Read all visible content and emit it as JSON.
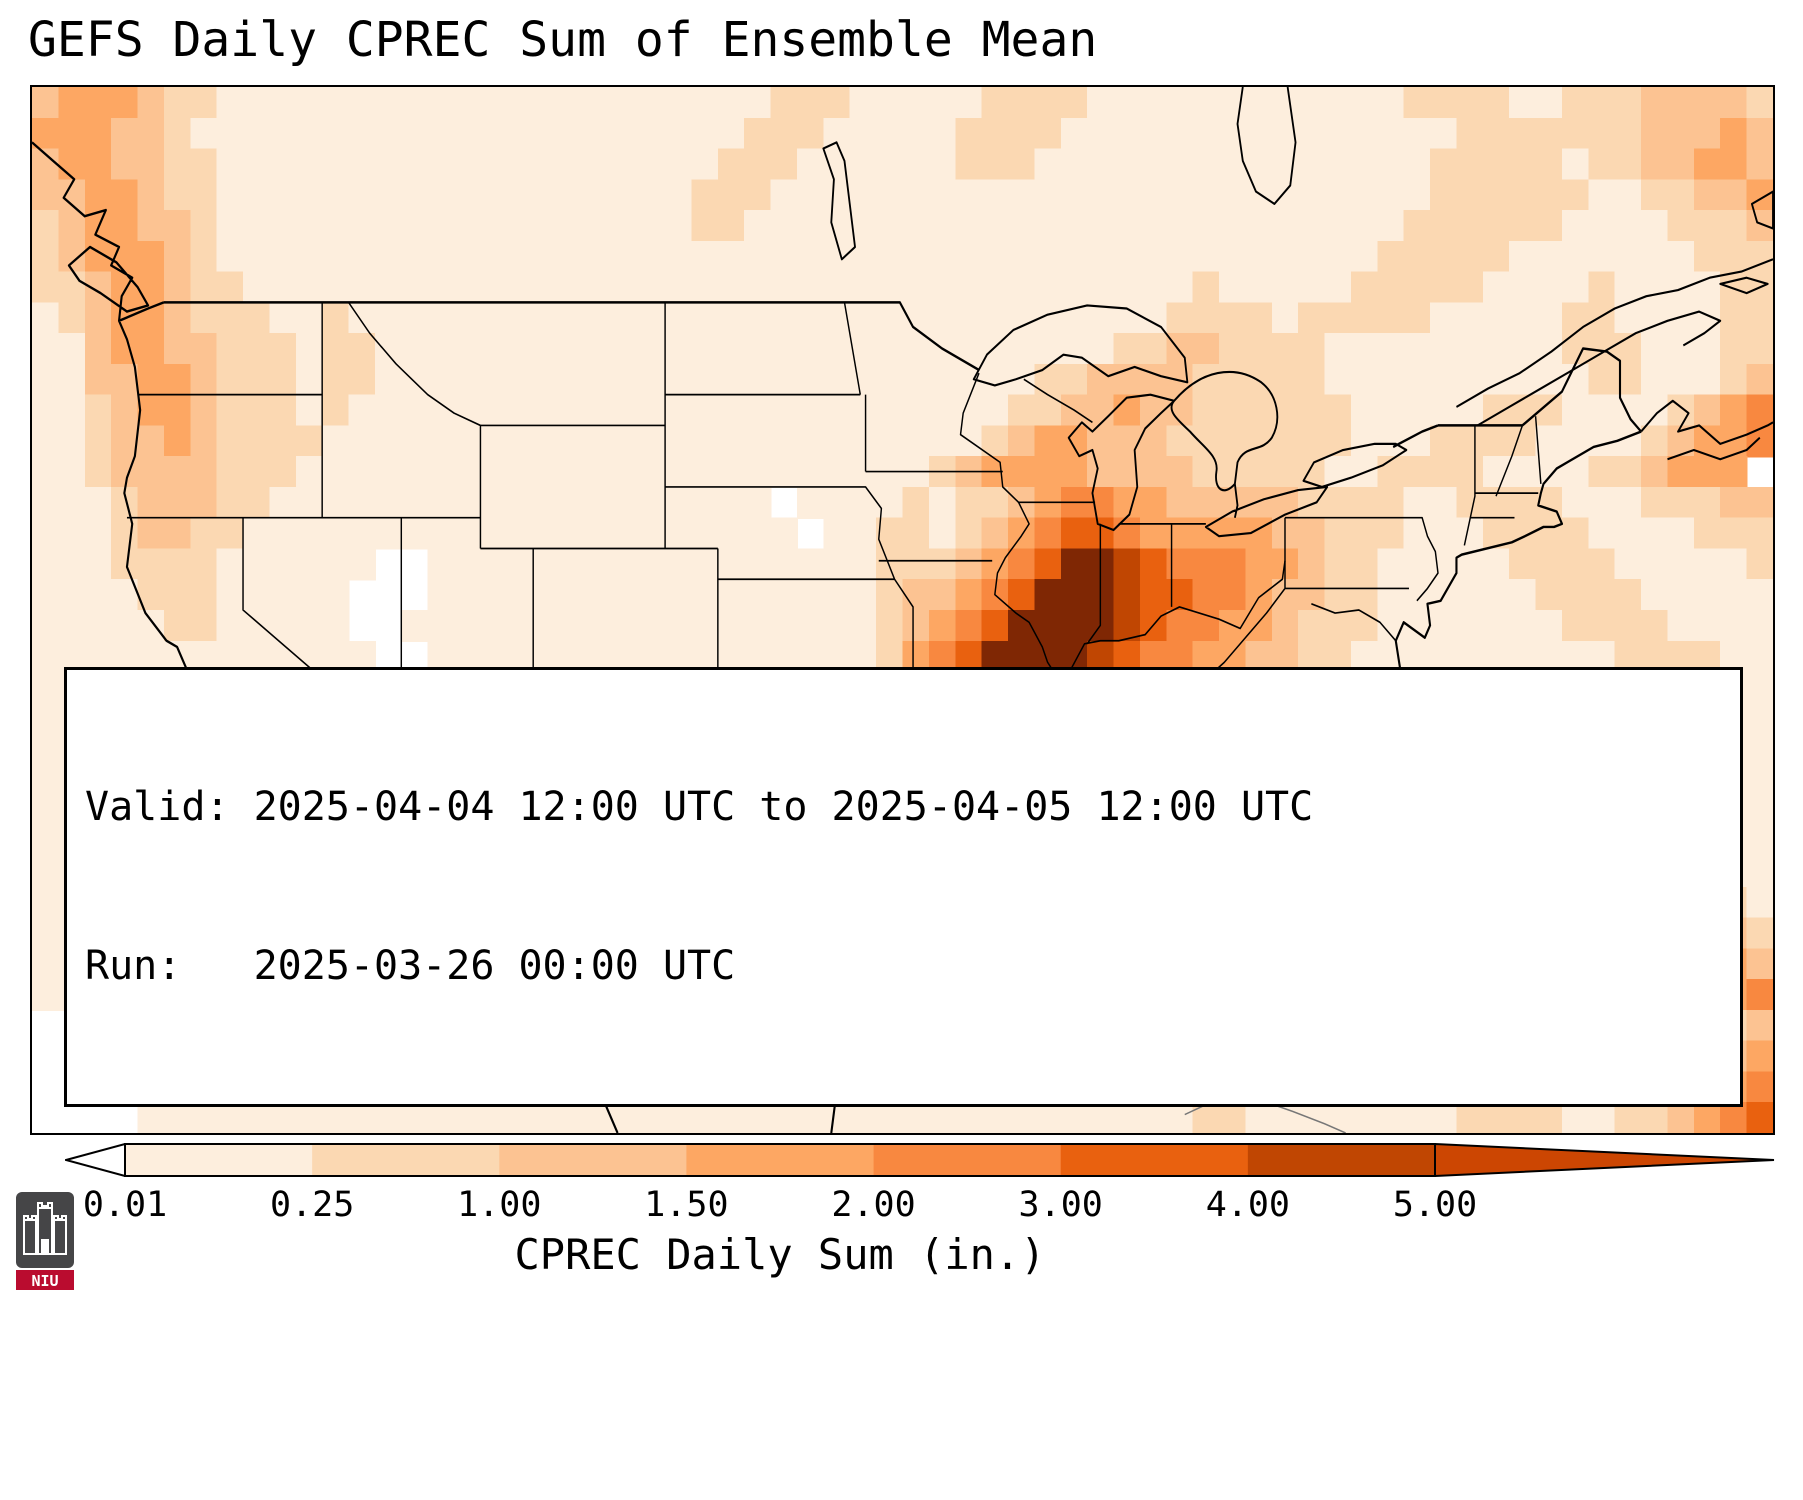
{
  "page": {
    "title": "GEFS Daily CPREC Sum of Ensemble Mean"
  },
  "info_box": {
    "valid_line": "Valid: 2025-04-04 12:00 UTC to 2025-04-05 12:00 UTC",
    "run_line": "Run:   2025-03-26 00:00 UTC"
  },
  "colorbar": {
    "label": "CPREC Daily Sum (in.)",
    "ticks": [
      "0.01",
      "0.25",
      "1.00",
      "1.50",
      "2.00",
      "3.00",
      "4.00",
      "5.00"
    ],
    "segment_colors": [
      "#fdeedd",
      "#fbd8b2",
      "#fcc392",
      "#fda763",
      "#f88840",
      "#e9610f",
      "#c04602"
    ],
    "under_color": "#ffffff",
    "over_color": "#cc4602",
    "outline_color": "#000000"
  },
  "logo": {
    "text": "NIU",
    "box_color": "#454547",
    "banner_color": "#ba0c2f"
  },
  "chart_data": {
    "type": "heatmap",
    "title": "GEFS Daily CPREC Sum of Ensemble Mean",
    "variable": "CPREC Daily Sum",
    "units": "in.",
    "valid_from": "2025-04-04 12:00 UTC",
    "valid_to": "2025-04-05 12:00 UTC",
    "run": "2025-03-26 00:00 UTC",
    "lon_range": [
      -128,
      -62
    ],
    "lat_range": [
      22,
      56
    ],
    "grid_cell_deg": 1,
    "levels_in": [
      0.01,
      0.25,
      1.0,
      1.5,
      2.0,
      3.0,
      4.0,
      5.0
    ],
    "level_colors": [
      "#ffffff",
      "#fdeedd",
      "#fbd8b2",
      "#fcc392",
      "#fda763",
      "#f88840",
      "#e9610f",
      "#c04602",
      "#7f2704"
    ],
    "legend_note": "each char in a grid row is a precipitation bin index 0-8; rows run north to south (56N to 22N), columns west to east (128W to 62W)",
    "max_region": "Arkansas / Missouri / Illinois / Indiana (> 5.00 in.)",
    "grid_rows_top_to_bottom": [
      "344432211111111111111111111122211111222211111111111122221122233 33222",
      "444332111111111111111111111222111112222111111111111111222222233343222",
      "344332211111111111111111112221111112221111111111111112222212233443322",
      "334432211111111111111111122211111111111111111111111112222221122334332",
      "234433211111111111111111122111111111111111111111111122222211112223433",
      "234443211111111111111111111111111111111111111111111222221111111222333",
      "223443221111111111111111111111111111111111112111112222211112111122233",
      "123443222112111111111111111111111111111111122221222221111122111122334",
      "113443322212211111111111111111111111111112233222211111111122211122344",
      "113344322212211111111111111111111111112233332222211111111112211123445",
      "112344322212111111111111111111111111122334332222221111122211112345540",
      "112334322221111111111111111111111111234433322222221112222111123445400",
      "112333322211111111111111111111111123444433332222211222211112234440000",
      "111233322111111111111111111101111212234554433333222211222211122233300",
      "111233221111111111111111111110112212345665444443322211122221111222200",
      "111222211111100111111111111111112223456887655544322111112222111112200",
      "111122211111000111111111111111112334568887665543322111111222211111200",
      "111112211111001111111111111111112345688887655443222111111122221111100",
      "111111111111100111111111111111112456888876554433221111111111222211100",
      "111111111111000111111111111111112468888765443332211111333221111111100",
      "111111111111100011111111111111113578887654433222221111344321111111100",
      "111111111111110001111111111111124688765443322222111111134432111111100",
      "111111111111111001111111111111135776554332222111111111123443211111100",
      "111111111111111111111111111111124665443322211111111111112344321111100",
      "111111111111111111111111110001135544332221111111111111111234432111100",
      "111111111111111111111111000111244332222111111111111111111123443211100",
      "111111111111111111111111000111133222211111111111111111111112344321100",
      "111111111111111111111111001111122222111111111111111111111111234432100",
      "111111111111111111111111111111112211111111111111111111111111123443200",
      "111111111111111111111111111111111111111111111111111111111111112345400",
      "000000111111111111111111111111111111111111111111111111112211111223455",
      "000000111111111111111111111111111111111111111111111111112211112234566",
      "000001111111111111111111111111111111111111111211111111122211122345667",
      "000011111111111111111111111111111111111111112211111111222211223456777"
    ]
  }
}
